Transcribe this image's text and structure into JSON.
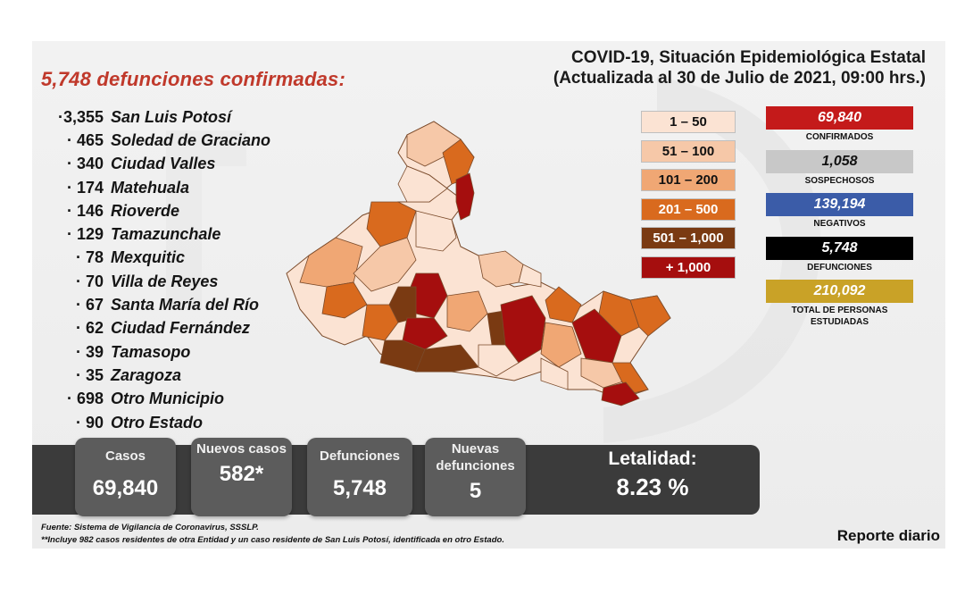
{
  "header": {
    "title_line1": "COVID-19, Situación Epidemiológica Estatal",
    "title_line2": "(Actualizada al 30 de Julio de 2021, 09:00 hrs.)"
  },
  "deaths_title": "5,748 defunciones confirmadas:",
  "municipalities": [
    {
      "value": "·3,355",
      "name": "San Luis Potosí"
    },
    {
      "value": "· 465",
      "name": "Soledad de Graciano"
    },
    {
      "value": "· 340",
      "name": "Ciudad Valles"
    },
    {
      "value": "· 174",
      "name": "Matehuala"
    },
    {
      "value": "· 146",
      "name": "Rioverde"
    },
    {
      "value": "· 129",
      "name": "Tamazunchale"
    },
    {
      "value": "· 78",
      "name": "Mexquitic"
    },
    {
      "value": "· 70",
      "name": "Villa de Reyes"
    },
    {
      "value": "· 67",
      "name": "Santa María del Río"
    },
    {
      "value": "· 62",
      "name": "Ciudad Fernández"
    },
    {
      "value": "· 39",
      "name": "Tamasopo"
    },
    {
      "value": "· 35",
      "name": "Zaragoza"
    },
    {
      "value": "· 698",
      "name": "Otro Municipio"
    },
    {
      "value": "· 90",
      "name": "Otro Estado"
    }
  ],
  "legend": [
    {
      "label": "1 – 50",
      "color": "#fbe3d3",
      "text_color": "#111111"
    },
    {
      "label": "51 – 100",
      "color": "#f6c8a8",
      "text_color": "#111111"
    },
    {
      "label": "101 – 200",
      "color": "#f0a774",
      "text_color": "#111111"
    },
    {
      "label": "201 – 500",
      "color": "#d96a1e",
      "text_color": "#ffffff"
    },
    {
      "label": "501 – 1,000",
      "color": "#7a3a12",
      "text_color": "#ffffff"
    },
    {
      "label": "+ 1,000",
      "color": "#a50e0e",
      "text_color": "#ffffff"
    }
  ],
  "stats": [
    {
      "value": "69,840",
      "label": "CONFIRMADOS",
      "bg": "#c41a1a",
      "fg": "#ffffff"
    },
    {
      "value": "1,058",
      "label": "SOSPECHOSOS",
      "bg": "#c8c8c8",
      "fg": "#111111"
    },
    {
      "value": "139,194",
      "label": "NEGATIVOS",
      "bg": "#3b5ca8",
      "fg": "#ffffff"
    },
    {
      "value": "5,748",
      "label": "DEFUNCIONES",
      "bg": "#000000",
      "fg": "#ffffff"
    },
    {
      "value": "210,092",
      "label": "TOTAL DE PERSONAS ESTUDIADAS",
      "bg": "#c9a227",
      "fg": "#ffffff"
    }
  ],
  "summary": {
    "casos_label": "Casos",
    "casos_value": "69,840",
    "nuevos_casos_label": "Nuevos casos",
    "nuevos_casos_value": "582*",
    "defunciones_label": "Defunciones",
    "defunciones_value": "5,748",
    "nuevas_defunciones_label": "Nuevas defunciones",
    "nuevas_defunciones_value": "5",
    "letalidad_label": "Letalidad:",
    "letalidad_value": "8.23 %"
  },
  "footnotes": {
    "source": "Fuente: Sistema de Vigilancia de Coronavirus, SSSLP.",
    "note": "**Incluye 982 casos residentes de otra Entidad y un caso residente de San Luis Potosí, identificada en otro Estado."
  },
  "report_label": "Reporte diario"
}
